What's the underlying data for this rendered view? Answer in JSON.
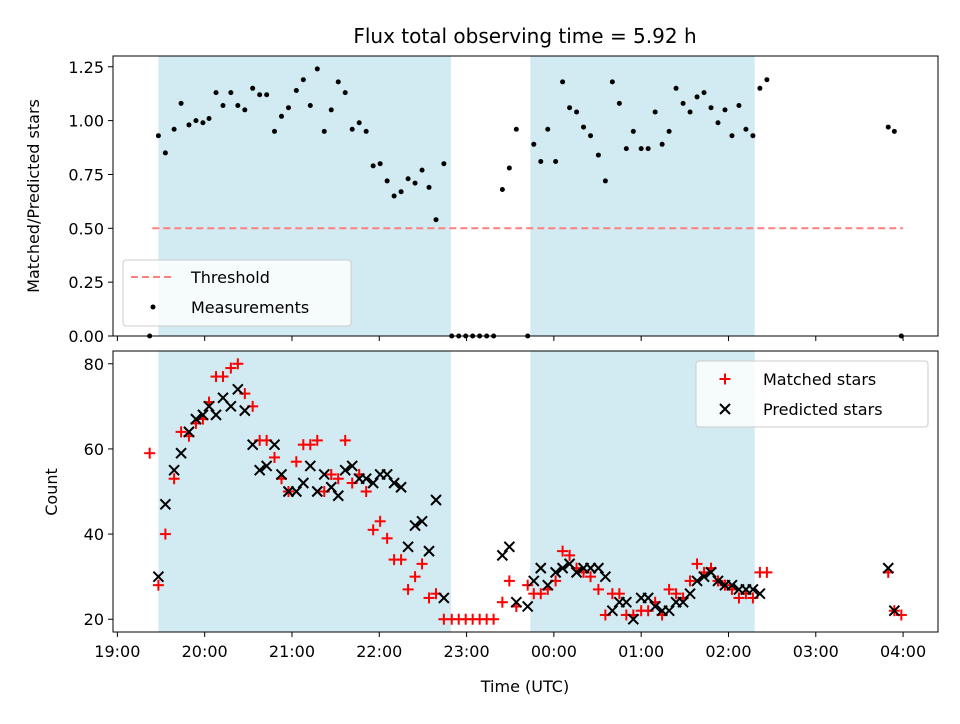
{
  "chart_data": {
    "type": "scatter",
    "title": "Flux total observing time = 5.92 h",
    "xlabel": "Time (UTC)",
    "x_unit": "hours after 19:00 UTC",
    "xlim": [
      -0.05,
      9.4
    ],
    "x_ticks": [
      0,
      1,
      2,
      3,
      4,
      5,
      6,
      7,
      8,
      9
    ],
    "x_tick_labels": [
      "19:00",
      "20:00",
      "21:00",
      "22:00",
      "23:00",
      "00:00",
      "01:00",
      "02:00",
      "03:00",
      "04:00"
    ],
    "shaded_intervals": [
      [
        0.47,
        3.82
      ],
      [
        4.73,
        7.3
      ]
    ],
    "shade_color": "#add8e6",
    "top": {
      "ylabel": "Matched/Predicted stars",
      "ylim": [
        0,
        1.3
      ],
      "y_ticks": [
        0,
        0.25,
        0.5,
        0.75,
        1.0,
        1.25
      ],
      "y_tick_labels": [
        "0.00",
        "0.25",
        "0.50",
        "0.75",
        "1.00",
        "1.25"
      ],
      "threshold": {
        "name": "Threshold",
        "value": 0.5,
        "x_range": [
          0.4,
          9.0
        ],
        "color": "#ff7f7f"
      },
      "measurements": {
        "name": "Measurements",
        "color": "#000000",
        "points": [
          [
            0.37,
            0.0
          ],
          [
            0.47,
            0.93
          ],
          [
            0.55,
            0.85
          ],
          [
            0.65,
            0.96
          ],
          [
            0.73,
            1.08
          ],
          [
            0.82,
            0.98
          ],
          [
            0.9,
            1.0
          ],
          [
            0.98,
            0.99
          ],
          [
            1.05,
            1.01
          ],
          [
            1.13,
            1.13
          ],
          [
            1.21,
            1.07
          ],
          [
            1.3,
            1.13
          ],
          [
            1.38,
            1.07
          ],
          [
            1.46,
            1.05
          ],
          [
            1.55,
            1.15
          ],
          [
            1.63,
            1.12
          ],
          [
            1.71,
            1.12
          ],
          [
            1.8,
            0.95
          ],
          [
            1.88,
            1.02
          ],
          [
            1.96,
            1.06
          ],
          [
            2.05,
            1.14
          ],
          [
            2.13,
            1.19
          ],
          [
            2.21,
            1.07
          ],
          [
            2.29,
            1.24
          ],
          [
            2.37,
            0.95
          ],
          [
            2.45,
            1.05
          ],
          [
            2.53,
            1.18
          ],
          [
            2.61,
            1.13
          ],
          [
            2.69,
            0.96
          ],
          [
            2.77,
            0.99
          ],
          [
            2.85,
            0.95
          ],
          [
            2.93,
            0.79
          ],
          [
            3.01,
            0.8
          ],
          [
            3.09,
            0.72
          ],
          [
            3.17,
            0.65
          ],
          [
            3.25,
            0.67
          ],
          [
            3.33,
            0.73
          ],
          [
            3.41,
            0.71
          ],
          [
            3.49,
            0.77
          ],
          [
            3.57,
            0.69
          ],
          [
            3.65,
            0.54
          ],
          [
            3.74,
            0.8
          ],
          [
            3.83,
            0.0
          ],
          [
            3.91,
            0.0
          ],
          [
            3.99,
            0.0
          ],
          [
            4.07,
            0.0
          ],
          [
            4.15,
            0.0
          ],
          [
            4.23,
            0.0
          ],
          [
            4.31,
            0.0
          ],
          [
            4.41,
            0.68
          ],
          [
            4.49,
            0.78
          ],
          [
            4.57,
            0.96
          ],
          [
            4.7,
            0.0
          ],
          [
            4.77,
            0.89
          ],
          [
            4.85,
            0.81
          ],
          [
            4.93,
            0.96
          ],
          [
            5.02,
            0.81
          ],
          [
            5.1,
            1.18
          ],
          [
            5.18,
            1.06
          ],
          [
            5.26,
            1.04
          ],
          [
            5.34,
            0.97
          ],
          [
            5.42,
            0.93
          ],
          [
            5.51,
            0.84
          ],
          [
            5.59,
            0.72
          ],
          [
            5.67,
            1.18
          ],
          [
            5.75,
            1.08
          ],
          [
            5.83,
            0.87
          ],
          [
            5.91,
            0.95
          ],
          [
            6.0,
            0.87
          ],
          [
            6.08,
            0.87
          ],
          [
            6.16,
            1.04
          ],
          [
            6.24,
            0.89
          ],
          [
            6.32,
            0.95
          ],
          [
            6.4,
            1.15
          ],
          [
            6.48,
            1.08
          ],
          [
            6.56,
            1.04
          ],
          [
            6.64,
            1.11
          ],
          [
            6.72,
            1.13
          ],
          [
            6.8,
            1.06
          ],
          [
            6.88,
            0.99
          ],
          [
            6.96,
            1.05
          ],
          [
            7.04,
            0.93
          ],
          [
            7.12,
            1.07
          ],
          [
            7.2,
            0.96
          ],
          [
            7.28,
            0.93
          ],
          [
            7.36,
            1.15
          ],
          [
            7.44,
            1.19
          ],
          [
            8.83,
            0.97
          ],
          [
            8.9,
            0.95
          ],
          [
            8.98,
            0.0
          ]
        ]
      }
    },
    "bottom": {
      "ylabel": "Count",
      "ylim": [
        17,
        83
      ],
      "y_ticks": [
        20,
        40,
        60,
        80
      ],
      "y_tick_labels": [
        "20",
        "40",
        "60",
        "80"
      ],
      "matched": {
        "name": "Matched stars",
        "color": "#ff0000",
        "points": [
          [
            0.37,
            59
          ],
          [
            0.47,
            28
          ],
          [
            0.55,
            40
          ],
          [
            0.65,
            53
          ],
          [
            0.73,
            64
          ],
          [
            0.82,
            63
          ],
          [
            0.9,
            66
          ],
          [
            0.98,
            67
          ],
          [
            1.05,
            71
          ],
          [
            1.13,
            77
          ],
          [
            1.21,
            77
          ],
          [
            1.3,
            79
          ],
          [
            1.38,
            80
          ],
          [
            1.46,
            73
          ],
          [
            1.55,
            70
          ],
          [
            1.63,
            62
          ],
          [
            1.71,
            62
          ],
          [
            1.8,
            58
          ],
          [
            1.88,
            53
          ],
          [
            1.96,
            50
          ],
          [
            2.05,
            57
          ],
          [
            2.13,
            61
          ],
          [
            2.21,
            61
          ],
          [
            2.29,
            62
          ],
          [
            2.37,
            50
          ],
          [
            2.45,
            54
          ],
          [
            2.53,
            53
          ],
          [
            2.61,
            62
          ],
          [
            2.69,
            52
          ],
          [
            2.77,
            54
          ],
          [
            2.85,
            50
          ],
          [
            2.93,
            41
          ],
          [
            3.01,
            43
          ],
          [
            3.09,
            39
          ],
          [
            3.17,
            34
          ],
          [
            3.25,
            34
          ],
          [
            3.33,
            27
          ],
          [
            3.41,
            30
          ],
          [
            3.49,
            33
          ],
          [
            3.57,
            25
          ],
          [
            3.65,
            26
          ],
          [
            3.74,
            20
          ],
          [
            3.83,
            20
          ],
          [
            3.91,
            20
          ],
          [
            3.99,
            20
          ],
          [
            4.07,
            20
          ],
          [
            4.15,
            20
          ],
          [
            4.23,
            20
          ],
          [
            4.31,
            20
          ],
          [
            4.41,
            24
          ],
          [
            4.49,
            29
          ],
          [
            4.57,
            23
          ],
          [
            4.7,
            28
          ],
          [
            4.77,
            26
          ],
          [
            4.85,
            26
          ],
          [
            4.93,
            27
          ],
          [
            5.02,
            29
          ],
          [
            5.1,
            36
          ],
          [
            5.18,
            35
          ],
          [
            5.26,
            32
          ],
          [
            5.34,
            31
          ],
          [
            5.42,
            30
          ],
          [
            5.51,
            27
          ],
          [
            5.59,
            21
          ],
          [
            5.67,
            26
          ],
          [
            5.75,
            26
          ],
          [
            5.83,
            21
          ],
          [
            5.91,
            21
          ],
          [
            6.0,
            22
          ],
          [
            6.08,
            22
          ],
          [
            6.16,
            24
          ],
          [
            6.24,
            21
          ],
          [
            6.32,
            27
          ],
          [
            6.4,
            26
          ],
          [
            6.48,
            25
          ],
          [
            6.56,
            29
          ],
          [
            6.64,
            33
          ],
          [
            6.72,
            31
          ],
          [
            6.8,
            32
          ],
          [
            6.88,
            29
          ],
          [
            6.96,
            28
          ],
          [
            7.04,
            27
          ],
          [
            7.12,
            25
          ],
          [
            7.2,
            26
          ],
          [
            7.28,
            25
          ],
          [
            7.36,
            31
          ],
          [
            7.44,
            31
          ],
          [
            8.83,
            31
          ],
          [
            8.9,
            22
          ],
          [
            8.98,
            21
          ]
        ]
      },
      "predicted": {
        "name": "Predicted stars",
        "color": "#000000",
        "points": [
          [
            0.47,
            30
          ],
          [
            0.55,
            47
          ],
          [
            0.65,
            55
          ],
          [
            0.73,
            59
          ],
          [
            0.82,
            64
          ],
          [
            0.9,
            67
          ],
          [
            0.98,
            68
          ],
          [
            1.05,
            70
          ],
          [
            1.13,
            68
          ],
          [
            1.21,
            72
          ],
          [
            1.3,
            70
          ],
          [
            1.38,
            74
          ],
          [
            1.46,
            69
          ],
          [
            1.55,
            61
          ],
          [
            1.63,
            55
          ],
          [
            1.71,
            56
          ],
          [
            1.8,
            61
          ],
          [
            1.88,
            54
          ],
          [
            1.96,
            50
          ],
          [
            2.05,
            50
          ],
          [
            2.13,
            52
          ],
          [
            2.21,
            56
          ],
          [
            2.29,
            50
          ],
          [
            2.37,
            54
          ],
          [
            2.45,
            51
          ],
          [
            2.53,
            49
          ],
          [
            2.61,
            55
          ],
          [
            2.69,
            56
          ],
          [
            2.77,
            53
          ],
          [
            2.85,
            53
          ],
          [
            2.93,
            52
          ],
          [
            3.01,
            54
          ],
          [
            3.09,
            54
          ],
          [
            3.17,
            52
          ],
          [
            3.25,
            51
          ],
          [
            3.33,
            37
          ],
          [
            3.41,
            42
          ],
          [
            3.49,
            43
          ],
          [
            3.57,
            36
          ],
          [
            3.65,
            48
          ],
          [
            3.74,
            25
          ],
          [
            4.41,
            35
          ],
          [
            4.49,
            37
          ],
          [
            4.57,
            24
          ],
          [
            4.7,
            23
          ],
          [
            4.77,
            29
          ],
          [
            4.85,
            32
          ],
          [
            4.93,
            28
          ],
          [
            5.02,
            31
          ],
          [
            5.1,
            32
          ],
          [
            5.18,
            33
          ],
          [
            5.26,
            31
          ],
          [
            5.34,
            32
          ],
          [
            5.42,
            32
          ],
          [
            5.51,
            32
          ],
          [
            5.59,
            30
          ],
          [
            5.67,
            22
          ],
          [
            5.75,
            24
          ],
          [
            5.83,
            24
          ],
          [
            5.91,
            20
          ],
          [
            6.0,
            25
          ],
          [
            6.08,
            25
          ],
          [
            6.16,
            23
          ],
          [
            6.24,
            22
          ],
          [
            6.32,
            22
          ],
          [
            6.4,
            24
          ],
          [
            6.48,
            24
          ],
          [
            6.56,
            26
          ],
          [
            6.64,
            29
          ],
          [
            6.72,
            30
          ],
          [
            6.8,
            31
          ],
          [
            6.88,
            29
          ],
          [
            6.96,
            28
          ],
          [
            7.04,
            28
          ],
          [
            7.12,
            27
          ],
          [
            7.2,
            27
          ],
          [
            7.28,
            27
          ],
          [
            7.36,
            26
          ],
          [
            8.83,
            32
          ],
          [
            8.9,
            22
          ]
        ]
      }
    },
    "legend_top": {
      "position": "lower-left",
      "entries": [
        "Threshold",
        "Measurements"
      ]
    },
    "legend_bottom": {
      "position": "upper-right",
      "entries": [
        "Matched stars",
        "Predicted stars"
      ]
    }
  }
}
